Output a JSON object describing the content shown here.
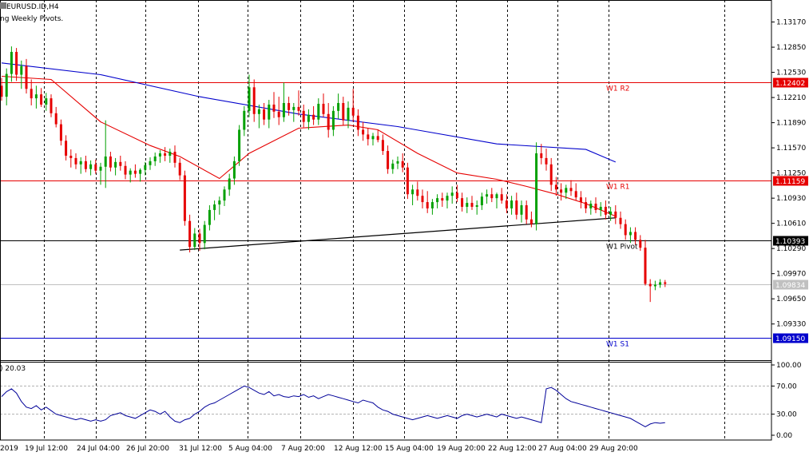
{
  "header": {
    "symbol_timeframe": "EURUSD.ID,H4",
    "indicator_name": "ng Weekly Pivots."
  },
  "chart_data": {
    "type": "candlestick",
    "symbol": "EURUSD.ID",
    "timeframe": "H4",
    "ylim": [
      1.0887,
      1.1345
    ],
    "y_ticks": [
      "1.13170",
      "1.12850",
      "1.12530",
      "1.12210",
      "1.11890",
      "1.11570",
      "1.11250",
      "1.10930",
      "1.10610",
      "1.10290",
      "1.09970",
      "1.09650",
      "1.09330"
    ],
    "x_ticks": [
      "2019",
      "19 Jul 12:00",
      "24 Jul 04:00",
      "26 Jul 20:00",
      "31 Jul 12:00",
      "5 Aug 04:00",
      "7 Aug 20:00",
      "12 Aug 12:00",
      "15 Aug 04:00",
      "19 Aug 20:00",
      "22 Aug 12:00",
      "27 Aug 04:00",
      "29 Aug 20:00"
    ],
    "candles": [
      {
        "o": 1.1236,
        "h": 1.1246,
        "l": 1.1217,
        "c": 1.1222
      },
      {
        "o": 1.1222,
        "h": 1.1258,
        "l": 1.1211,
        "c": 1.1251
      },
      {
        "o": 1.1251,
        "h": 1.1286,
        "l": 1.1241,
        "c": 1.1279
      },
      {
        "o": 1.1279,
        "h": 1.1284,
        "l": 1.1242,
        "c": 1.125
      },
      {
        "o": 1.125,
        "h": 1.1268,
        "l": 1.1232,
        "c": 1.1261
      },
      {
        "o": 1.1261,
        "h": 1.127,
        "l": 1.1226,
        "c": 1.1232
      },
      {
        "o": 1.1232,
        "h": 1.1244,
        "l": 1.1211,
        "c": 1.122
      },
      {
        "o": 1.122,
        "h": 1.1236,
        "l": 1.1207,
        "c": 1.1225
      },
      {
        "o": 1.1225,
        "h": 1.1233,
        "l": 1.1209,
        "c": 1.1212
      },
      {
        "o": 1.1212,
        "h": 1.1227,
        "l": 1.1204,
        "c": 1.122
      },
      {
        "o": 1.122,
        "h": 1.1225,
        "l": 1.1196,
        "c": 1.1201
      },
      {
        "o": 1.1201,
        "h": 1.1209,
        "l": 1.1183,
        "c": 1.1187
      },
      {
        "o": 1.1187,
        "h": 1.1193,
        "l": 1.116,
        "c": 1.1166
      },
      {
        "o": 1.1166,
        "h": 1.1173,
        "l": 1.1141,
        "c": 1.1147
      },
      {
        "o": 1.1147,
        "h": 1.1155,
        "l": 1.1132,
        "c": 1.1144
      },
      {
        "o": 1.1144,
        "h": 1.115,
        "l": 1.113,
        "c": 1.1136
      },
      {
        "o": 1.1136,
        "h": 1.1145,
        "l": 1.1124,
        "c": 1.114
      },
      {
        "o": 1.114,
        "h": 1.1147,
        "l": 1.1126,
        "c": 1.113
      },
      {
        "o": 1.113,
        "h": 1.1141,
        "l": 1.1122,
        "c": 1.1136
      },
      {
        "o": 1.1136,
        "h": 1.1142,
        "l": 1.1124,
        "c": 1.1128
      },
      {
        "o": 1.1128,
        "h": 1.1138,
        "l": 1.111,
        "c": 1.1133
      },
      {
        "o": 1.1133,
        "h": 1.1192,
        "l": 1.1106,
        "c": 1.1146
      },
      {
        "o": 1.1146,
        "h": 1.1152,
        "l": 1.1127,
        "c": 1.1132
      },
      {
        "o": 1.1132,
        "h": 1.1144,
        "l": 1.1122,
        "c": 1.1139
      },
      {
        "o": 1.1139,
        "h": 1.1147,
        "l": 1.1128,
        "c": 1.1134
      },
      {
        "o": 1.1134,
        "h": 1.114,
        "l": 1.1117,
        "c": 1.1123
      },
      {
        "o": 1.1123,
        "h": 1.1131,
        "l": 1.1113,
        "c": 1.1128
      },
      {
        "o": 1.1128,
        "h": 1.1136,
        "l": 1.1119,
        "c": 1.1124
      },
      {
        "o": 1.1124,
        "h": 1.1131,
        "l": 1.1114,
        "c": 1.1129
      },
      {
        "o": 1.1129,
        "h": 1.1139,
        "l": 1.1122,
        "c": 1.1135
      },
      {
        "o": 1.1135,
        "h": 1.1145,
        "l": 1.1129,
        "c": 1.114
      },
      {
        "o": 1.114,
        "h": 1.1151,
        "l": 1.1134,
        "c": 1.1146
      },
      {
        "o": 1.1146,
        "h": 1.1154,
        "l": 1.1138,
        "c": 1.115
      },
      {
        "o": 1.115,
        "h": 1.1158,
        "l": 1.114,
        "c": 1.1147
      },
      {
        "o": 1.1147,
        "h": 1.1156,
        "l": 1.1138,
        "c": 1.1152
      },
      {
        "o": 1.1152,
        "h": 1.116,
        "l": 1.1132,
        "c": 1.1138
      },
      {
        "o": 1.1138,
        "h": 1.1144,
        "l": 1.1116,
        "c": 1.1122
      },
      {
        "o": 1.1122,
        "h": 1.1128,
        "l": 1.1058,
        "c": 1.1064
      },
      {
        "o": 1.1064,
        "h": 1.1072,
        "l": 1.1024,
        "c": 1.1031
      },
      {
        "o": 1.1031,
        "h": 1.1055,
        "l": 1.1027,
        "c": 1.1048
      },
      {
        "o": 1.1048,
        "h": 1.1054,
        "l": 1.1026,
        "c": 1.1036
      },
      {
        "o": 1.1036,
        "h": 1.1064,
        "l": 1.1028,
        "c": 1.1059
      },
      {
        "o": 1.1059,
        "h": 1.1084,
        "l": 1.1052,
        "c": 1.1078
      },
      {
        "o": 1.1078,
        "h": 1.109,
        "l": 1.1065,
        "c": 1.1085
      },
      {
        "o": 1.1085,
        "h": 1.1095,
        "l": 1.1072,
        "c": 1.109
      },
      {
        "o": 1.109,
        "h": 1.1108,
        "l": 1.1083,
        "c": 1.1104
      },
      {
        "o": 1.1104,
        "h": 1.1124,
        "l": 1.1096,
        "c": 1.1118
      },
      {
        "o": 1.1118,
        "h": 1.1146,
        "l": 1.111,
        "c": 1.114
      },
      {
        "o": 1.114,
        "h": 1.1186,
        "l": 1.1134,
        "c": 1.118
      },
      {
        "o": 1.118,
        "h": 1.121,
        "l": 1.1172,
        "c": 1.1204
      },
      {
        "o": 1.1204,
        "h": 1.125,
        "l": 1.1196,
        "c": 1.1234
      },
      {
        "o": 1.1234,
        "h": 1.1244,
        "l": 1.119,
        "c": 1.12
      },
      {
        "o": 1.12,
        "h": 1.1212,
        "l": 1.1182,
        "c": 1.1206
      },
      {
        "o": 1.1206,
        "h": 1.1214,
        "l": 1.1186,
        "c": 1.1193
      },
      {
        "o": 1.1193,
        "h": 1.1218,
        "l": 1.1182,
        "c": 1.1212
      },
      {
        "o": 1.1212,
        "h": 1.1228,
        "l": 1.1195,
        "c": 1.1203
      },
      {
        "o": 1.1203,
        "h": 1.1222,
        "l": 1.1186,
        "c": 1.1196
      },
      {
        "o": 1.1196,
        "h": 1.124,
        "l": 1.119,
        "c": 1.1214
      },
      {
        "o": 1.1214,
        "h": 1.1222,
        "l": 1.1198,
        "c": 1.1205
      },
      {
        "o": 1.1205,
        "h": 1.1214,
        "l": 1.119,
        "c": 1.1209
      },
      {
        "o": 1.1209,
        "h": 1.123,
        "l": 1.1198,
        "c": 1.1204
      },
      {
        "o": 1.1204,
        "h": 1.1212,
        "l": 1.1183,
        "c": 1.119
      },
      {
        "o": 1.119,
        "h": 1.1206,
        "l": 1.118,
        "c": 1.1199
      },
      {
        "o": 1.1199,
        "h": 1.121,
        "l": 1.1186,
        "c": 1.1193
      },
      {
        "o": 1.1193,
        "h": 1.122,
        "l": 1.1186,
        "c": 1.1213
      },
      {
        "o": 1.1213,
        "h": 1.1226,
        "l": 1.1196,
        "c": 1.12
      },
      {
        "o": 1.12,
        "h": 1.1214,
        "l": 1.117,
        "c": 1.118
      },
      {
        "o": 1.118,
        "h": 1.121,
        "l": 1.1172,
        "c": 1.1204
      },
      {
        "o": 1.1204,
        "h": 1.1226,
        "l": 1.1194,
        "c": 1.1214
      },
      {
        "o": 1.1214,
        "h": 1.1222,
        "l": 1.1186,
        "c": 1.1192
      },
      {
        "o": 1.1192,
        "h": 1.1216,
        "l": 1.1182,
        "c": 1.1208
      },
      {
        "o": 1.1208,
        "h": 1.1232,
        "l": 1.119,
        "c": 1.1198
      },
      {
        "o": 1.1198,
        "h": 1.1206,
        "l": 1.1172,
        "c": 1.118
      },
      {
        "o": 1.118,
        "h": 1.119,
        "l": 1.1166,
        "c": 1.1174
      },
      {
        "o": 1.1174,
        "h": 1.1182,
        "l": 1.116,
        "c": 1.1168
      },
      {
        "o": 1.1168,
        "h": 1.1176,
        "l": 1.116,
        "c": 1.1172
      },
      {
        "o": 1.1172,
        "h": 1.118,
        "l": 1.1164,
        "c": 1.1167
      },
      {
        "o": 1.1167,
        "h": 1.1174,
        "l": 1.1148,
        "c": 1.1153
      },
      {
        "o": 1.1153,
        "h": 1.116,
        "l": 1.1124,
        "c": 1.113
      },
      {
        "o": 1.113,
        "h": 1.1142,
        "l": 1.1124,
        "c": 1.1137
      },
      {
        "o": 1.1137,
        "h": 1.1146,
        "l": 1.113,
        "c": 1.114
      },
      {
        "o": 1.114,
        "h": 1.115,
        "l": 1.1126,
        "c": 1.1132
      },
      {
        "o": 1.1132,
        "h": 1.1138,
        "l": 1.1092,
        "c": 1.1098
      },
      {
        "o": 1.1098,
        "h": 1.111,
        "l": 1.1084,
        "c": 1.1104
      },
      {
        "o": 1.1104,
        "h": 1.1114,
        "l": 1.109,
        "c": 1.1096
      },
      {
        "o": 1.1096,
        "h": 1.1104,
        "l": 1.108,
        "c": 1.1088
      },
      {
        "o": 1.1088,
        "h": 1.1102,
        "l": 1.1074,
        "c": 1.108
      },
      {
        "o": 1.108,
        "h": 1.1092,
        "l": 1.1072,
        "c": 1.1088
      },
      {
        "o": 1.1088,
        "h": 1.1098,
        "l": 1.108,
        "c": 1.1093
      },
      {
        "o": 1.1093,
        "h": 1.11,
        "l": 1.1082,
        "c": 1.109
      },
      {
        "o": 1.109,
        "h": 1.11,
        "l": 1.108,
        "c": 1.1096
      },
      {
        "o": 1.1096,
        "h": 1.1108,
        "l": 1.1086,
        "c": 1.11
      },
      {
        "o": 1.11,
        "h": 1.111,
        "l": 1.1088,
        "c": 1.1093
      },
      {
        "o": 1.1093,
        "h": 1.11,
        "l": 1.1076,
        "c": 1.1082
      },
      {
        "o": 1.1082,
        "h": 1.1094,
        "l": 1.1074,
        "c": 1.1087
      },
      {
        "o": 1.1087,
        "h": 1.1096,
        "l": 1.1078,
        "c": 1.1082
      },
      {
        "o": 1.1082,
        "h": 1.109,
        "l": 1.1072,
        "c": 1.1084
      },
      {
        "o": 1.1084,
        "h": 1.11,
        "l": 1.1078,
        "c": 1.1095
      },
      {
        "o": 1.1095,
        "h": 1.1104,
        "l": 1.1086,
        "c": 1.1098
      },
      {
        "o": 1.1098,
        "h": 1.1106,
        "l": 1.1088,
        "c": 1.1093
      },
      {
        "o": 1.1093,
        "h": 1.11,
        "l": 1.108,
        "c": 1.1098
      },
      {
        "o": 1.1098,
        "h": 1.1106,
        "l": 1.1086,
        "c": 1.109
      },
      {
        "o": 1.109,
        "h": 1.1098,
        "l": 1.1074,
        "c": 1.108
      },
      {
        "o": 1.108,
        "h": 1.1096,
        "l": 1.1072,
        "c": 1.109
      },
      {
        "o": 1.109,
        "h": 1.11,
        "l": 1.1066,
        "c": 1.1072
      },
      {
        "o": 1.1072,
        "h": 1.109,
        "l": 1.1062,
        "c": 1.1084
      },
      {
        "o": 1.1084,
        "h": 1.109,
        "l": 1.106,
        "c": 1.1066
      },
      {
        "o": 1.1066,
        "h": 1.1076,
        "l": 1.1056,
        "c": 1.106
      },
      {
        "o": 1.106,
        "h": 1.1164,
        "l": 1.1052,
        "c": 1.115
      },
      {
        "o": 1.115,
        "h": 1.1162,
        "l": 1.1136,
        "c": 1.1144
      },
      {
        "o": 1.1144,
        "h": 1.1156,
        "l": 1.1128,
        "c": 1.1136
      },
      {
        "o": 1.1136,
        "h": 1.1144,
        "l": 1.1102,
        "c": 1.111
      },
      {
        "o": 1.111,
        "h": 1.112,
        "l": 1.1096,
        "c": 1.1104
      },
      {
        "o": 1.1104,
        "h": 1.1112,
        "l": 1.109,
        "c": 1.11
      },
      {
        "o": 1.11,
        "h": 1.111,
        "l": 1.1092,
        "c": 1.1106
      },
      {
        "o": 1.1106,
        "h": 1.1116,
        "l": 1.1096,
        "c": 1.1102
      },
      {
        "o": 1.1102,
        "h": 1.1112,
        "l": 1.109,
        "c": 1.1094
      },
      {
        "o": 1.1094,
        "h": 1.1102,
        "l": 1.108,
        "c": 1.1088
      },
      {
        "o": 1.1088,
        "h": 1.1094,
        "l": 1.1074,
        "c": 1.108
      },
      {
        "o": 1.108,
        "h": 1.109,
        "l": 1.1072,
        "c": 1.1086
      },
      {
        "o": 1.1086,
        "h": 1.1094,
        "l": 1.1074,
        "c": 1.1078
      },
      {
        "o": 1.1078,
        "h": 1.1088,
        "l": 1.107,
        "c": 1.1082
      },
      {
        "o": 1.1082,
        "h": 1.109,
        "l": 1.1066,
        "c": 1.1072
      },
      {
        "o": 1.1072,
        "h": 1.1082,
        "l": 1.1064,
        "c": 1.1076
      },
      {
        "o": 1.1076,
        "h": 1.1084,
        "l": 1.106,
        "c": 1.1068
      },
      {
        "o": 1.1068,
        "h": 1.1076,
        "l": 1.1054,
        "c": 1.106
      },
      {
        "o": 1.106,
        "h": 1.1066,
        "l": 1.104,
        "c": 1.1046
      },
      {
        "o": 1.1046,
        "h": 1.1056,
        "l": 1.1036,
        "c": 1.105
      },
      {
        "o": 1.105,
        "h": 1.1056,
        "l": 1.1034,
        "c": 1.104
      },
      {
        "o": 1.104,
        "h": 1.1046,
        "l": 1.1026,
        "c": 1.103
      },
      {
        "o": 1.103,
        "h": 1.104,
        "l": 1.0982,
        "c": 1.0984
      },
      {
        "o": 1.0984,
        "h": 1.099,
        "l": 1.0961,
        "c": 1.0981
      },
      {
        "o": 1.0981,
        "h": 1.0988,
        "l": 1.0976,
        "c": 1.0983
      },
      {
        "o": 1.0983,
        "h": 1.099,
        "l": 1.0979,
        "c": 1.0986
      },
      {
        "o": 1.0986,
        "h": 1.0989,
        "l": 1.098,
        "c": 1.0984
      }
    ],
    "moving_averages": [
      {
        "color": "#0000cc",
        "points": [
          [
            0,
            1.1265
          ],
          [
            20,
            1.125
          ],
          [
            40,
            1.1222
          ],
          [
            60,
            1.12
          ],
          [
            80,
            1.1184
          ],
          [
            100,
            1.1162
          ],
          [
            118,
            1.1155
          ],
          [
            124,
            1.1139
          ]
        ]
      },
      {
        "color": "#e60000",
        "points": [
          [
            0,
            1.1248
          ],
          [
            10,
            1.1244
          ],
          [
            20,
            1.119
          ],
          [
            30,
            1.116
          ],
          [
            36,
            1.1146
          ],
          [
            44,
            1.1118
          ],
          [
            50,
            1.115
          ],
          [
            60,
            1.1182
          ],
          [
            70,
            1.1186
          ],
          [
            76,
            1.118
          ],
          [
            84,
            1.115
          ],
          [
            92,
            1.1125
          ],
          [
            100,
            1.1117
          ],
          [
            106,
            1.1108
          ],
          [
            112,
            1.1098
          ],
          [
            118,
            1.1086
          ],
          [
            124,
            1.107
          ]
        ]
      }
    ],
    "pivots": [
      {
        "label": "W1 R2",
        "value": "1.12402",
        "color": "#e60000"
      },
      {
        "label": "W1 R1",
        "value": "1.11159",
        "color": "#e60000"
      },
      {
        "label": "W1 Pivot",
        "value": "1.10393",
        "color": "#000000"
      },
      {
        "label": "W1 S1",
        "value": "1.09150",
        "color": "#0000cc"
      }
    ],
    "current_price": "1.09834",
    "trendline": {
      "from": [
        36,
        1.1027
      ],
      "to": [
        124,
        1.1068
      ]
    },
    "oscillator": {
      "label": ") 20.03",
      "ylim": [
        0,
        100
      ],
      "y_ticks": [
        "100.00",
        "70.00",
        "30.00",
        "0.00"
      ],
      "levels": [
        70,
        30
      ],
      "color": "#000099",
      "values": [
        55,
        62,
        66,
        60,
        48,
        40,
        38,
        42,
        36,
        40,
        35,
        30,
        28,
        26,
        24,
        22,
        24,
        22,
        20,
        22,
        20,
        22,
        28,
        30,
        32,
        28,
        26,
        24,
        28,
        32,
        36,
        34,
        30,
        34,
        26,
        20,
        18,
        22,
        24,
        30,
        34,
        40,
        44,
        46,
        50,
        54,
        58,
        62,
        66,
        70,
        68,
        64,
        60,
        58,
        62,
        56,
        58,
        55,
        54,
        56,
        55,
        58,
        54,
        56,
        52,
        55,
        58,
        56,
        54,
        52,
        50,
        48,
        46,
        50,
        48,
        46,
        40,
        36,
        34,
        30,
        28,
        26,
        24,
        22,
        24,
        26,
        28,
        26,
        24,
        26,
        28,
        26,
        24,
        28,
        30,
        28,
        26,
        28,
        30,
        28,
        26,
        30,
        28,
        26,
        24,
        26,
        24,
        22,
        20,
        18,
        66,
        68,
        64,
        58,
        52,
        48,
        46,
        44,
        42,
        40,
        38,
        36,
        34,
        32,
        30,
        28,
        26,
        24,
        20,
        16,
        12,
        16,
        18,
        17,
        18
      ]
    }
  }
}
